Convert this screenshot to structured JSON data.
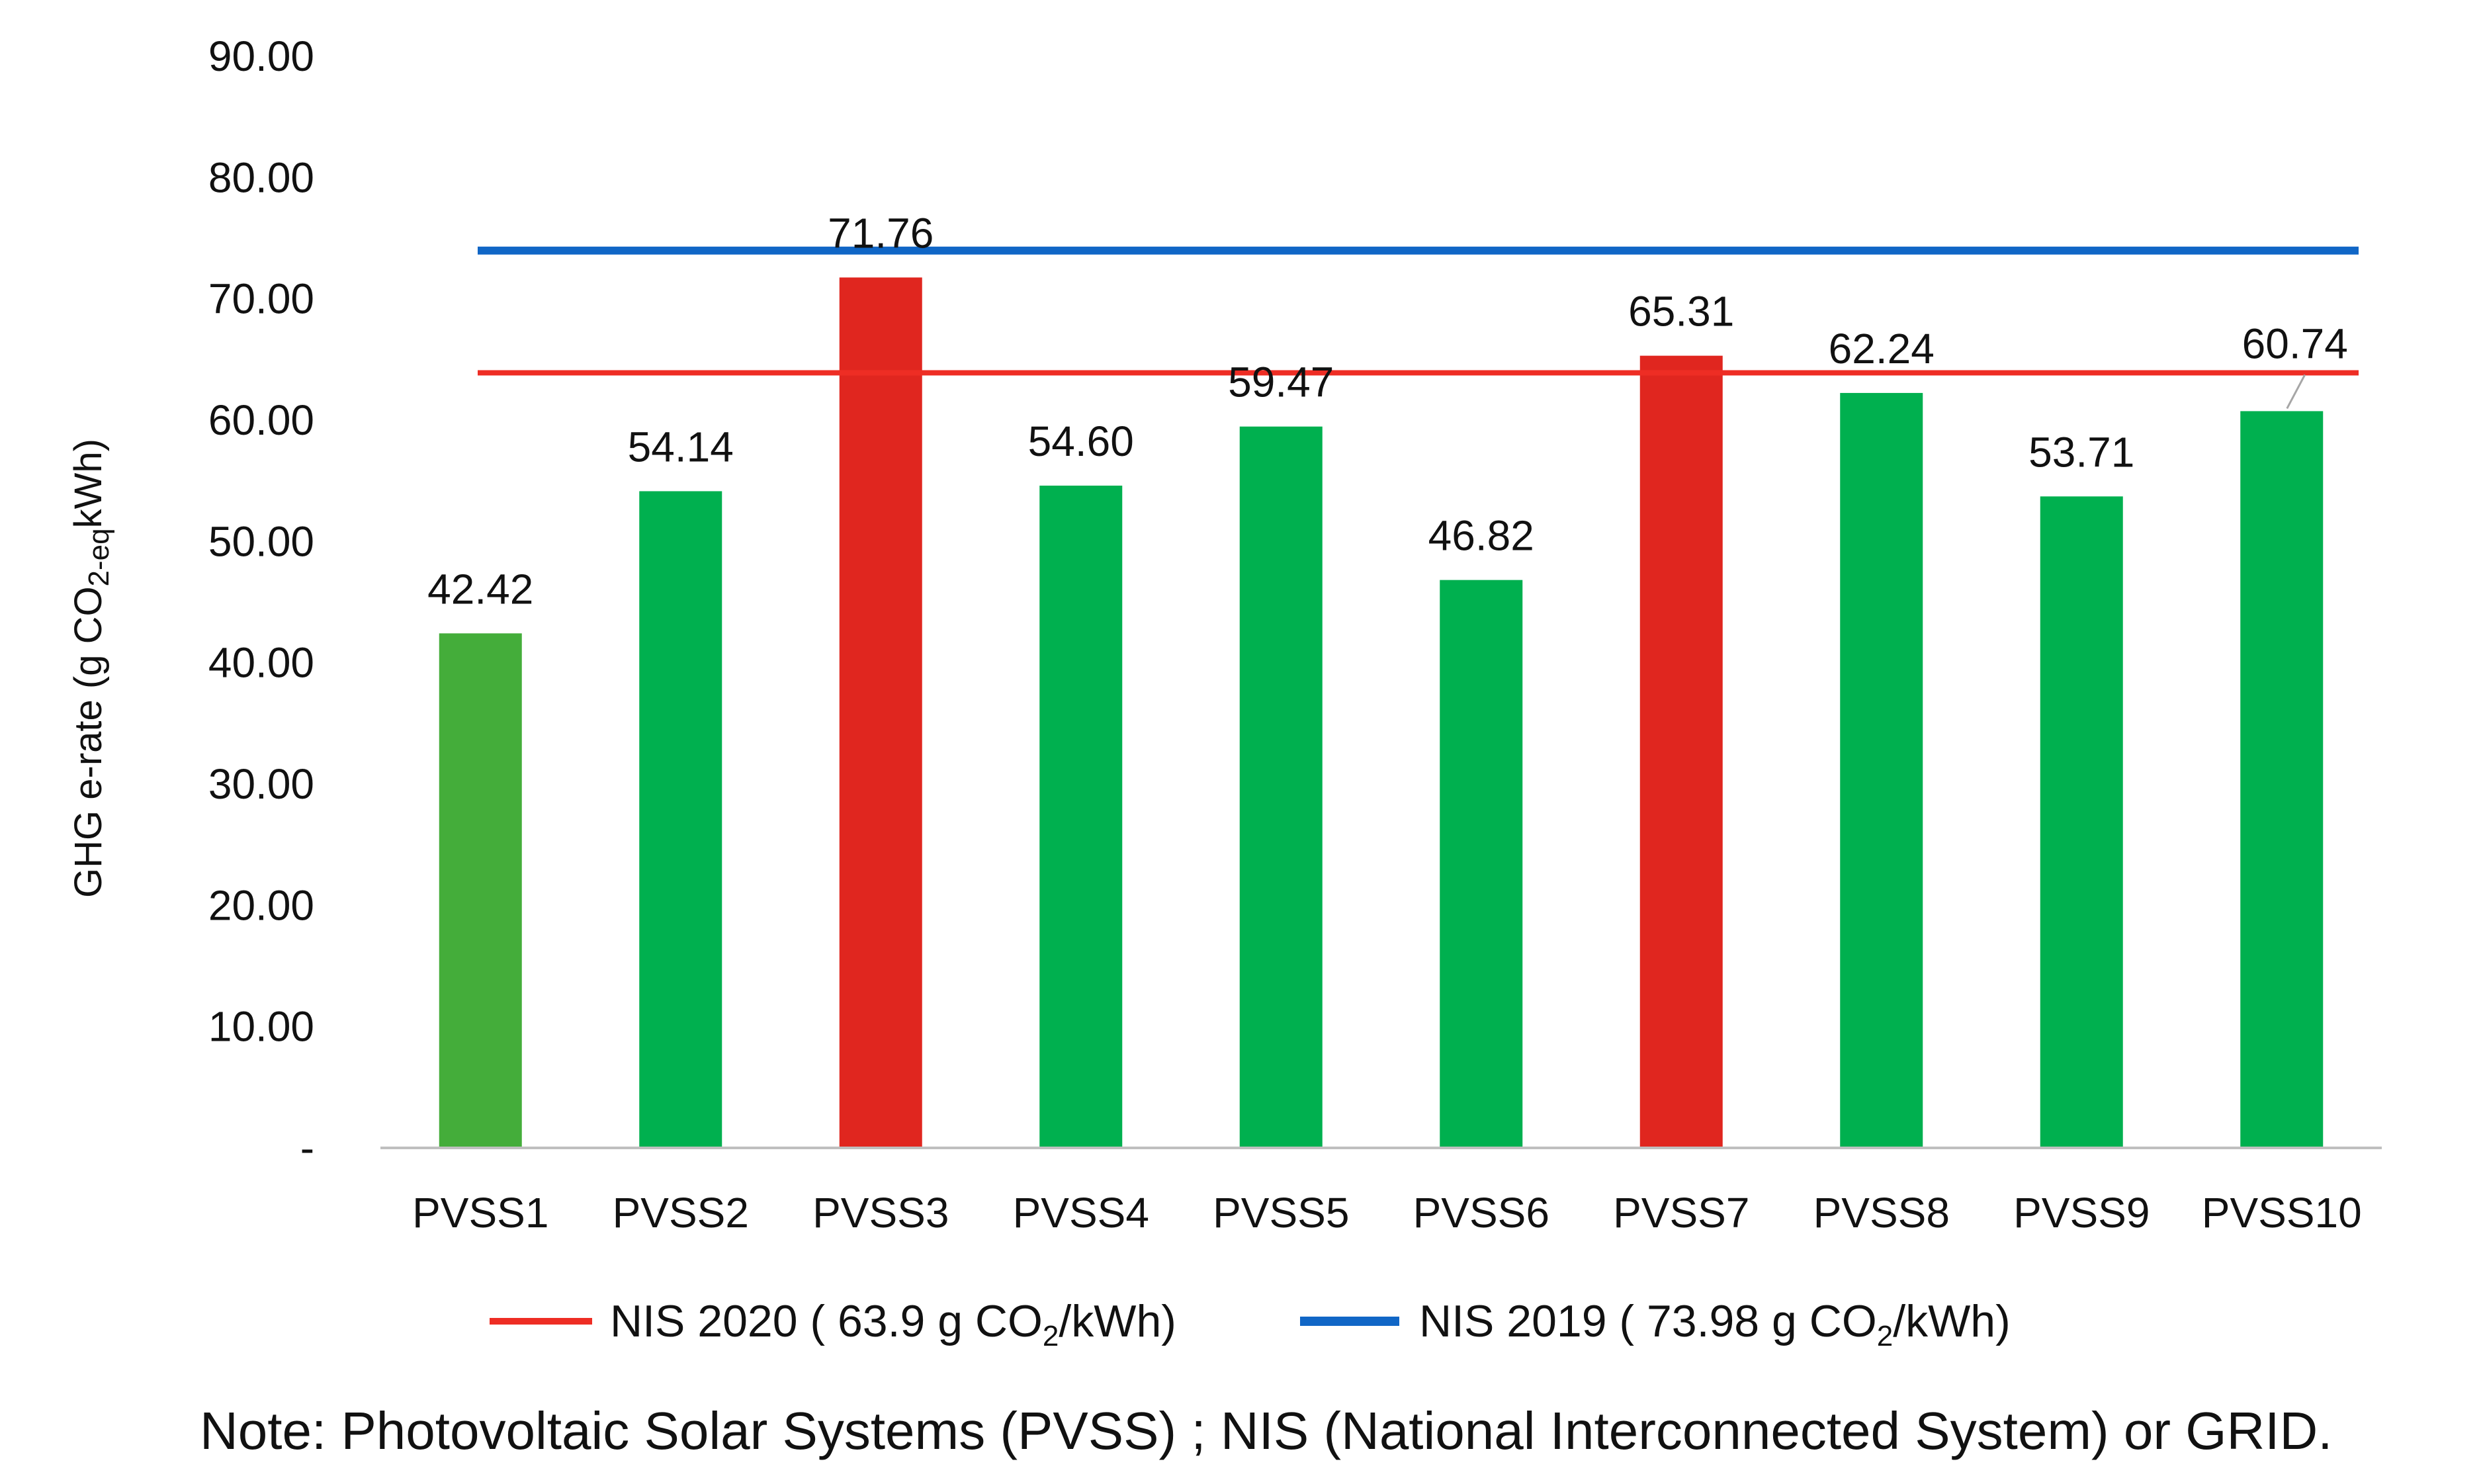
{
  "chart_data": {
    "type": "bar",
    "title": "",
    "xlabel": "",
    "ylabel": {
      "prefix": "GHG e-rate (g CO",
      "subscript": "2-eq",
      "suffix": "kWh)"
    },
    "ylim": [
      0,
      90
    ],
    "y_ticks": [
      {
        "value": 90,
        "label": "90.00"
      },
      {
        "value": 80,
        "label": "80.00"
      },
      {
        "value": 70,
        "label": "70.00"
      },
      {
        "value": 60,
        "label": "60.00"
      },
      {
        "value": 50,
        "label": "50.00"
      },
      {
        "value": 40,
        "label": "40.00"
      },
      {
        "value": 30,
        "label": "30.00"
      },
      {
        "value": 20,
        "label": "20.00"
      },
      {
        "value": 10,
        "label": "10.00"
      },
      {
        "value": 0,
        "label": "-"
      }
    ],
    "grid": false,
    "categories": [
      "PVSS1",
      "PVSS2",
      "PVSS3",
      "PVSS4",
      "PVSS5",
      "PVSS6",
      "PVSS7",
      "PVSS8",
      "PVSS9",
      "PVSS10"
    ],
    "values": [
      42.42,
      54.14,
      71.76,
      54.6,
      59.47,
      46.82,
      65.31,
      62.24,
      53.71,
      60.74
    ],
    "value_labels": [
      "42.42",
      "54.14",
      "71.76",
      "54.60",
      "59.47",
      "46.82",
      "65.31",
      "62.24",
      "53.71",
      "60.74"
    ],
    "bar_colors": [
      "#44ad3a",
      "#00b04f",
      "#e0261f",
      "#00b04f",
      "#00b04f",
      "#00b04f",
      "#e0261f",
      "#00b04f",
      "#00b04f",
      "#00b04f"
    ],
    "reference_lines": [
      {
        "name": "NIS 2020",
        "value": 63.9,
        "color": "#ee2d24",
        "legend_prefix": "NIS 2020 ( 63.9 g CO",
        "legend_sub": "2",
        "legend_suffix": "/kWh)"
      },
      {
        "name": "NIS 2019",
        "value": 73.98,
        "color": "#1066c6",
        "legend_prefix": "NIS 2019 ( 73.98 g CO",
        "legend_sub": "2",
        "legend_suffix": "/kWh)"
      }
    ],
    "legend_position": "bottom",
    "axis_color": "#bfbfbf"
  },
  "note": "Note: Photovoltaic Solar Systems  (PVSS) ; NIS (National Interconnected System) or GRID."
}
